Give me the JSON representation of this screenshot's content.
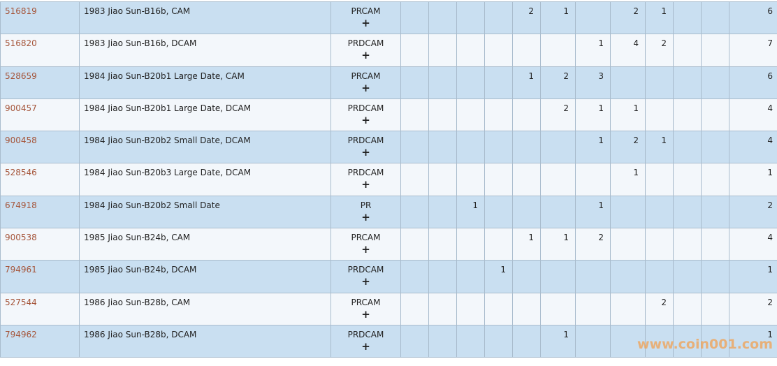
{
  "rows": [
    {
      "id": "516819",
      "name": "1983 Jiao Sun-B16b, CAM",
      "type": "PRCAM",
      "counts": [
        "",
        "",
        "",
        "",
        "2",
        "1",
        "",
        "2",
        "1",
        "",
        ""
      ],
      "total": "6"
    },
    {
      "id": "516820",
      "name": "1983 Jiao Sun-B16b, DCAM",
      "type": "PRDCAM",
      "counts": [
        "",
        "",
        "",
        "",
        "",
        "",
        "1",
        "4",
        "2",
        "",
        ""
      ],
      "total": "7"
    },
    {
      "id": "528659",
      "name": "1984 Jiao Sun-B20b1 Large Date, CAM",
      "type": "PRCAM",
      "counts": [
        "",
        "",
        "",
        "",
        "1",
        "2",
        "3",
        "",
        "",
        "",
        ""
      ],
      "total": "6"
    },
    {
      "id": "900457",
      "name": "1984 Jiao Sun-B20b1 Large Date, DCAM",
      "type": "PRDCAM",
      "counts": [
        "",
        "",
        "",
        "",
        "",
        "2",
        "1",
        "1",
        "",
        "",
        ""
      ],
      "total": "4"
    },
    {
      "id": "900458",
      "name": "1984 Jiao Sun-B20b2 Small Date, DCAM",
      "type": "PRDCAM",
      "counts": [
        "",
        "",
        "",
        "",
        "",
        "",
        "1",
        "2",
        "1",
        "",
        ""
      ],
      "total": "4"
    },
    {
      "id": "528546",
      "name": "1984 Jiao Sun-B20b3 Large Date, DCAM",
      "type": "PRDCAM",
      "counts": [
        "",
        "",
        "",
        "",
        "",
        "",
        "",
        "1",
        "",
        "",
        ""
      ],
      "total": "1"
    },
    {
      "id": "674918",
      "name": "1984 Jiao Sun-B20b2 Small Date",
      "type": "PR",
      "counts": [
        "",
        "",
        "1",
        "",
        "",
        "",
        "1",
        "",
        "",
        "",
        ""
      ],
      "total": "2"
    },
    {
      "id": "900538",
      "name": "1985 Jiao Sun-B24b, CAM",
      "type": "PRCAM",
      "counts": [
        "",
        "",
        "",
        "",
        "1",
        "1",
        "2",
        "",
        "",
        "",
        ""
      ],
      "total": "4"
    },
    {
      "id": "794961",
      "name": "1985 Jiao Sun-B24b, DCAM",
      "type": "PRDCAM",
      "counts": [
        "",
        "",
        "",
        "1",
        "",
        "",
        "",
        "",
        "",
        "",
        ""
      ],
      "total": "1"
    },
    {
      "id": "527544",
      "name": "1986 Jiao Sun-B28b, CAM",
      "type": "PRCAM",
      "counts": [
        "",
        "",
        "",
        "",
        "",
        "",
        "",
        "",
        "2",
        "",
        ""
      ],
      "total": "2"
    },
    {
      "id": "794962",
      "name": "1986 Jiao Sun-B28b, DCAM",
      "type": "PRDCAM",
      "counts": [
        "",
        "",
        "",
        "",
        "",
        "1",
        "",
        "",
        "",
        "",
        ""
      ],
      "total": "1"
    }
  ],
  "expand_label": "+",
  "watermark": "www.coin001.com",
  "colors": {
    "row_odd": "#c9dff1",
    "row_even": "#f3f7fb",
    "link": "#a5553a",
    "border": "#a9bccd",
    "watermark": "#f0a050"
  }
}
